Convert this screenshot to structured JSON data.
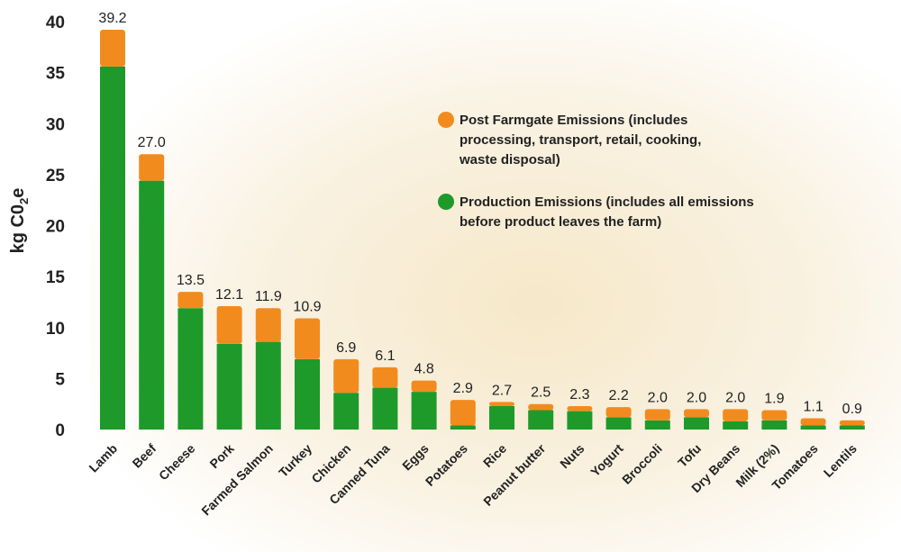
{
  "chart_data": {
    "type": "bar",
    "stacked": true,
    "ylabel": "kg C0₂e",
    "ylim": [
      0,
      40
    ],
    "yticks": [
      0,
      5,
      10,
      15,
      20,
      25,
      30,
      35,
      40
    ],
    "grid": false,
    "legend_position": "top-right",
    "categories": [
      "Lamb",
      "Beef",
      "Cheese",
      "Pork",
      "Farmed Salmon",
      "Turkey",
      "Chicken",
      "Canned Tuna",
      "Eggs",
      "Potatoes",
      "Rice",
      "Peanut butter",
      "Nuts",
      "Yogurt",
      "Broccoli",
      "Tofu",
      "Dry Beans",
      "Milk (2%)",
      "Tomatoes",
      "Lentils"
    ],
    "totals": [
      "39.2",
      "27.0",
      "13.5",
      "12.1",
      "11.9",
      "10.9",
      "6.9",
      "6.1",
      "4.8",
      "2.9",
      "2.7",
      "2.5",
      "2.3",
      "2.2",
      "2.0",
      "2.0",
      "2.0",
      "1.9",
      "1.1",
      "0.9"
    ],
    "series": [
      {
        "name": "Production Emissions (includes all emissions before product leaves the farm)",
        "color": "#1e9a2a",
        "values": [
          35.6,
          24.4,
          11.9,
          8.4,
          8.6,
          6.9,
          3.6,
          4.1,
          3.7,
          0.4,
          2.3,
          1.9,
          1.8,
          1.2,
          0.9,
          1.2,
          0.8,
          0.9,
          0.4,
          0.4
        ]
      },
      {
        "name": "Post Farmgate Emissions (includes processing, transport, retail, cooking, waste disposal)",
        "color": "#f28b1e",
        "values": [
          3.6,
          2.6,
          1.6,
          3.7,
          3.3,
          4.0,
          3.3,
          2.0,
          1.1,
          2.5,
          0.4,
          0.6,
          0.5,
          1.0,
          1.1,
          0.8,
          1.2,
          1.0,
          0.7,
          0.5
        ]
      }
    ],
    "legend_lines": [
      [
        "Post Farmgate Emissions (includes",
        "processing, transport, retail, cooking,",
        "waste disposal)"
      ],
      [
        "Production Emissions (includes all emissions",
        "before product leaves the farm)"
      ]
    ]
  }
}
